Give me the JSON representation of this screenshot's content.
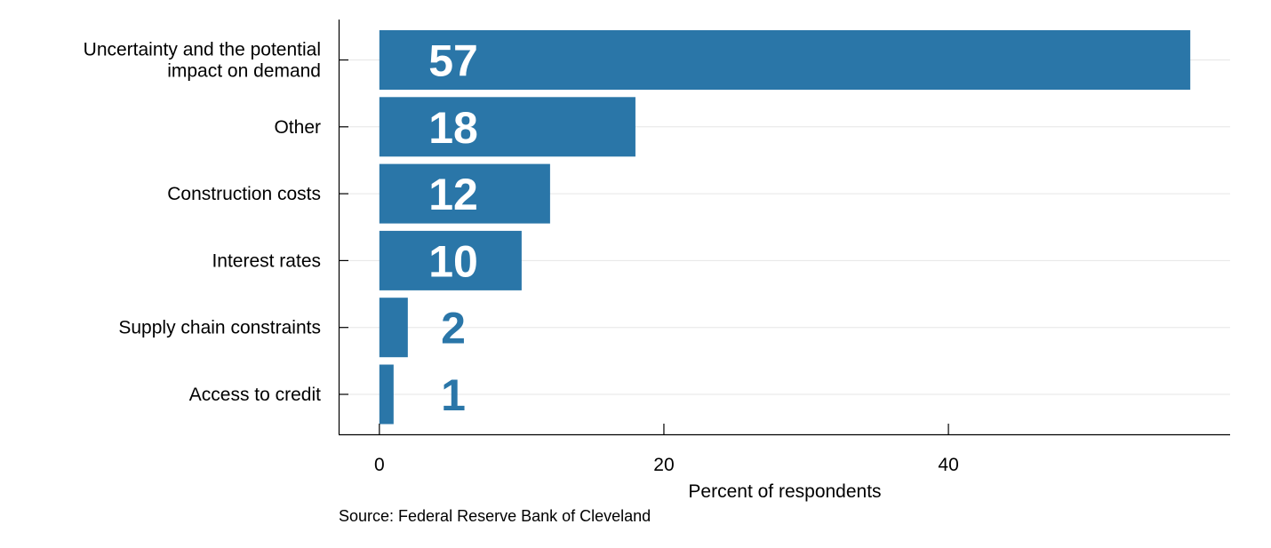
{
  "chart_data": {
    "type": "bar",
    "orientation": "horizontal",
    "categories": [
      [
        "Uncertainty and the potential",
        "impact on demand"
      ],
      [
        "Other"
      ],
      [
        "Construction costs"
      ],
      [
        "Interest rates"
      ],
      [
        "Supply chain constraints"
      ],
      [
        "Access to credit"
      ]
    ],
    "values": [
      57,
      18,
      12,
      10,
      2,
      1
    ],
    "data_labels": [
      "57",
      "18",
      "12",
      "10",
      "2",
      "1"
    ],
    "xlabel": "Percent of respondents",
    "ylabel": "",
    "xlim": [
      -2.8,
      59.8
    ],
    "xticks": [
      0,
      20,
      40
    ],
    "grid": true,
    "legend": "none",
    "bar_color": "#2a76a8",
    "label_inside_color": "#ffffff",
    "label_outside_color": "#2a76a8",
    "gridline_color": "#e6e6e6"
  },
  "source": "Source: Federal Reserve Bank of Cleveland"
}
